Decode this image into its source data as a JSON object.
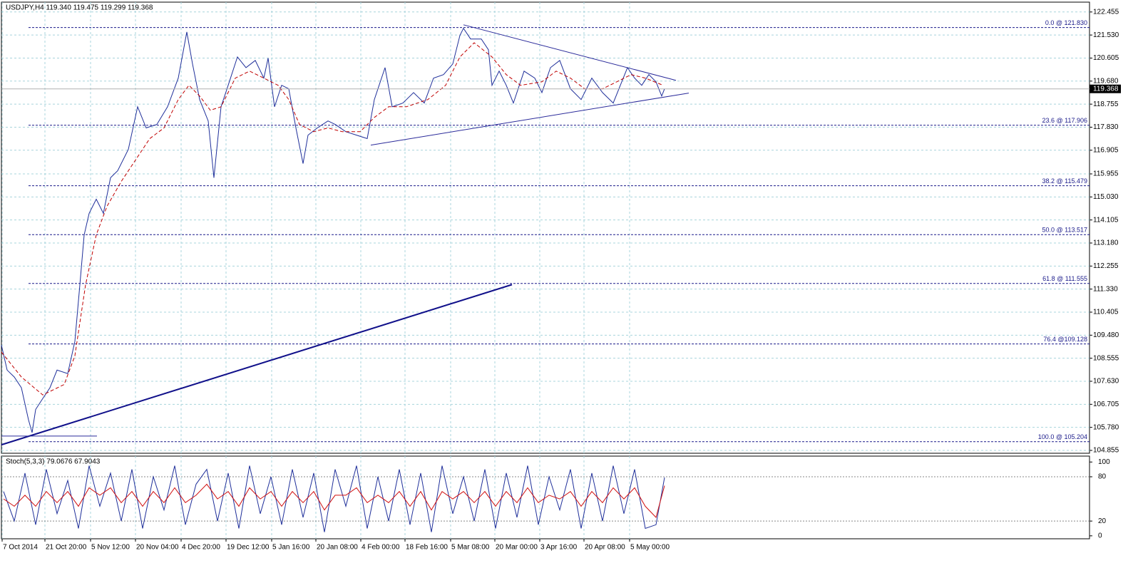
{
  "chart_data": [
    {
      "type": "line",
      "title": "USDJPY,H4  119.340 119.475 119.299 119.368",
      "xlim": [
        0,
        1526
      ],
      "ylim": [
        104.74,
        122.85
      ],
      "grid": true,
      "xticks": [
        {
          "value": 1,
          "label": "7 Oct 2014"
        },
        {
          "value": 61,
          "label": "21 Oct 20:00"
        },
        {
          "value": 125,
          "label": "5 Nov 12:00"
        },
        {
          "value": 188,
          "label": "20 Nov 04:00"
        },
        {
          "value": 252,
          "label": "4 Dec 20:00"
        },
        {
          "value": 315,
          "label": "19 Dec 12:00"
        },
        {
          "value": 379,
          "label": "5 Jan 16:00"
        },
        {
          "value": 441,
          "label": "20 Jan 08:00"
        },
        {
          "value": 504,
          "label": "4 Feb 00:00"
        },
        {
          "value": 566,
          "label": "18 Feb 16:00"
        },
        {
          "value": 630,
          "label": "5 Mar 08:00"
        },
        {
          "value": 692,
          "label": "20 Mar 00:00"
        },
        {
          "value": 755,
          "label": "3 Apr 16:00"
        },
        {
          "value": 817,
          "label": "20 Apr 08:00"
        },
        {
          "value": 881,
          "label": "5 May 00:00"
        }
      ],
      "yticks": [
        122.455,
        {
          "value": 121.53,
          "label": "121.530"
        },
        120.605,
        {
          "value": 119.68,
          "label": "119.680"
        },
        118.755,
        {
          "value": 117.83,
          "label": "117.830"
        },
        116.905,
        115.955,
        {
          "value": 115.03,
          "label": "115.030"
        },
        114.105,
        {
          "value": 113.18,
          "label": "113.180"
        },
        112.255,
        {
          "value": 111.33,
          "label": "111.330"
        },
        110.405,
        {
          "value": 109.48,
          "label": "109.480"
        },
        108.555,
        {
          "value": 107.63,
          "label": "107.630"
        },
        106.705,
        {
          "value": 105.78,
          "label": "105.780"
        },
        104.855
      ],
      "last_price": 119.368,
      "series": [
        {
          "color": "#1f2f9a",
          "dash": false,
          "x": [
            0,
            8,
            18,
            28,
            38,
            43,
            48,
            58,
            68,
            78,
            93,
            103,
            110,
            116,
            123,
            133,
            143,
            153,
            163,
            178,
            191,
            203,
            218,
            233,
            248,
            260,
            268,
            278,
            290,
            298,
            308,
            318,
            331,
            343,
            356,
            368,
            374,
            383,
            393,
            403,
            413,
            423,
            430,
            443,
            458,
            468,
            483,
            498,
            513,
            523,
            538,
            548,
            563,
            578,
            593,
            606,
            620,
            633,
            643,
            648,
            658,
            673,
            683,
            688,
            698,
            708,
            718,
            733,
            748,
            758,
            770,
            783,
            798,
            813,
            828,
            843,
            858,
            868,
            878,
            888,
            898,
            908,
            918,
            926,
            930
          ],
          "values": [
            109.08,
            108.08,
            107.8,
            107.37,
            106.08,
            105.57,
            106.5,
            106.94,
            107.37,
            108.08,
            107.94,
            109.23,
            111.5,
            113.5,
            114.37,
            114.94,
            114.37,
            115.8,
            116.08,
            116.94,
            118.65,
            117.8,
            117.94,
            118.65,
            119.8,
            121.65,
            120.37,
            118.94,
            118.08,
            115.8,
            118.65,
            119.51,
            120.65,
            120.22,
            120.51,
            119.8,
            120.6,
            118.65,
            119.51,
            119.37,
            117.8,
            116.37,
            117.51,
            117.8,
            118.08,
            117.94,
            117.65,
            117.51,
            117.37,
            118.94,
            120.22,
            118.65,
            118.8,
            119.22,
            118.8,
            119.8,
            119.94,
            120.37,
            121.51,
            121.8,
            121.37,
            121.37,
            120.94,
            119.51,
            120.08,
            119.51,
            118.8,
            120.08,
            119.8,
            119.22,
            120.22,
            120.51,
            119.37,
            118.94,
            119.8,
            119.22,
            118.8,
            119.51,
            120.22,
            119.8,
            119.51,
            119.94,
            119.65,
            119.08,
            119.37
          ]
        },
        {
          "color": "#c00000",
          "dash": true,
          "x": [
            0,
            28,
            58,
            88,
            103,
            118,
            133,
            148,
            168,
            188,
            208,
            228,
            248,
            263,
            278,
            293,
            308,
            328,
            348,
            368,
            388,
            403,
            418,
            438,
            458,
            478,
            503,
            523,
            543,
            568,
            598,
            623,
            643,
            663,
            688,
            708,
            728,
            758,
            778,
            798,
            818,
            843,
            863,
            883,
            903,
            928
          ],
          "values": [
            108.8,
            107.8,
            107.08,
            107.5,
            108.65,
            111.5,
            113.51,
            114.65,
            115.65,
            116.51,
            117.37,
            117.8,
            118.94,
            119.51,
            119.08,
            118.51,
            118.65,
            119.8,
            120.08,
            119.8,
            119.51,
            118.94,
            117.94,
            117.65,
            117.8,
            117.65,
            117.65,
            118.22,
            118.65,
            118.65,
            118.94,
            119.51,
            120.65,
            121.22,
            120.65,
            119.94,
            119.51,
            119.65,
            120.08,
            119.8,
            119.37,
            119.37,
            119.65,
            119.94,
            119.8,
            119.51
          ]
        }
      ],
      "levels": [
        {
          "value": 121.83,
          "label": "0.0 @ 121.830"
        },
        {
          "value": 117.906,
          "label": "23.6 @ 117.906"
        },
        {
          "value": 115.479,
          "label": "38.2 @ 115.479"
        },
        {
          "value": 113.517,
          "label": "50.0 @ 113.517"
        },
        {
          "value": 111.555,
          "label": "61.8 @ 111.555"
        },
        {
          "value": 109.128,
          "label": "76.4 @109.128"
        },
        {
          "value": 105.204,
          "label": "100.0 @ 105.204"
        }
      ],
      "levels_color": "#1a1a8a",
      "levels_xlim": [
        38,
        1526
      ],
      "trendlines": [
        {
          "x": [
            648,
            946
          ],
          "y": [
            121.94,
            119.71
          ],
          "color": "#2a2a9a",
          "width": 1
        },
        {
          "x": [
            518,
            964
          ],
          "y": [
            117.11,
            119.2
          ],
          "color": "#2a2a9a",
          "width": 1
        },
        {
          "x": [
            0,
            716
          ],
          "y": [
            105.08,
            111.51
          ],
          "color": "#10108a",
          "width": 2
        },
        {
          "x": [
            0,
            134
          ],
          "y": [
            105.43,
            105.43
          ],
          "color": "#2a2a9a",
          "width": 1
        }
      ]
    },
    {
      "type": "line",
      "title": "Stoch(5,3,3) 79.0676 67.9043",
      "xlim": [
        0,
        1526
      ],
      "ylim": [
        -4,
        108
      ],
      "yticks": [
        100,
        80,
        20,
        0
      ],
      "levels": [
        80,
        20
      ],
      "series": [
        {
          "color": "#1f2f9a",
          "dash": false,
          "x": [
            3,
            18,
            33,
            48,
            63,
            78,
            93,
            108,
            123,
            138,
            153,
            168,
            183,
            198,
            213,
            228,
            243,
            258,
            273,
            288,
            303,
            318,
            333,
            348,
            363,
            378,
            393,
            408,
            423,
            438,
            453,
            468,
            483,
            498,
            513,
            528,
            543,
            558,
            573,
            588,
            603,
            618,
            633,
            648,
            663,
            678,
            693,
            708,
            723,
            738,
            753,
            768,
            783,
            798,
            813,
            828,
            843,
            858,
            873,
            888,
            903,
            918,
            930
          ],
          "values": [
            60,
            20,
            85,
            15,
            90,
            30,
            75,
            10,
            95,
            40,
            85,
            20,
            90,
            10,
            80,
            35,
            95,
            15,
            70,
            90,
            20,
            85,
            10,
            95,
            30,
            80,
            15,
            90,
            25,
            85,
            5,
            90,
            40,
            95,
            10,
            80,
            20,
            90,
            15,
            85,
            5,
            95,
            30,
            80,
            20,
            90,
            10,
            85,
            25,
            95,
            15,
            80,
            35,
            90,
            10,
            85,
            20,
            95,
            30,
            90,
            10,
            15,
            79.0676
          ]
        },
        {
          "color": "#d01010",
          "dash": false,
          "x": [
            3,
            18,
            33,
            48,
            63,
            78,
            93,
            108,
            123,
            138,
            153,
            168,
            183,
            198,
            213,
            228,
            243,
            258,
            273,
            288,
            303,
            318,
            333,
            348,
            363,
            378,
            393,
            408,
            423,
            438,
            453,
            468,
            483,
            498,
            513,
            528,
            543,
            558,
            573,
            588,
            603,
            618,
            633,
            648,
            663,
            678,
            693,
            708,
            723,
            738,
            753,
            768,
            783,
            798,
            813,
            828,
            843,
            858,
            873,
            888,
            903,
            918,
            930
          ],
          "values": [
            50,
            40,
            55,
            40,
            60,
            45,
            60,
            40,
            65,
            55,
            65,
            45,
            60,
            40,
            60,
            45,
            65,
            45,
            55,
            70,
            50,
            60,
            40,
            65,
            50,
            60,
            40,
            60,
            45,
            60,
            35,
            55,
            55,
            65,
            45,
            55,
            45,
            60,
            40,
            60,
            35,
            60,
            50,
            60,
            45,
            60,
            40,
            60,
            45,
            65,
            45,
            55,
            50,
            60,
            40,
            60,
            45,
            65,
            50,
            65,
            40,
            25,
            67.9043
          ]
        }
      ]
    }
  ]
}
